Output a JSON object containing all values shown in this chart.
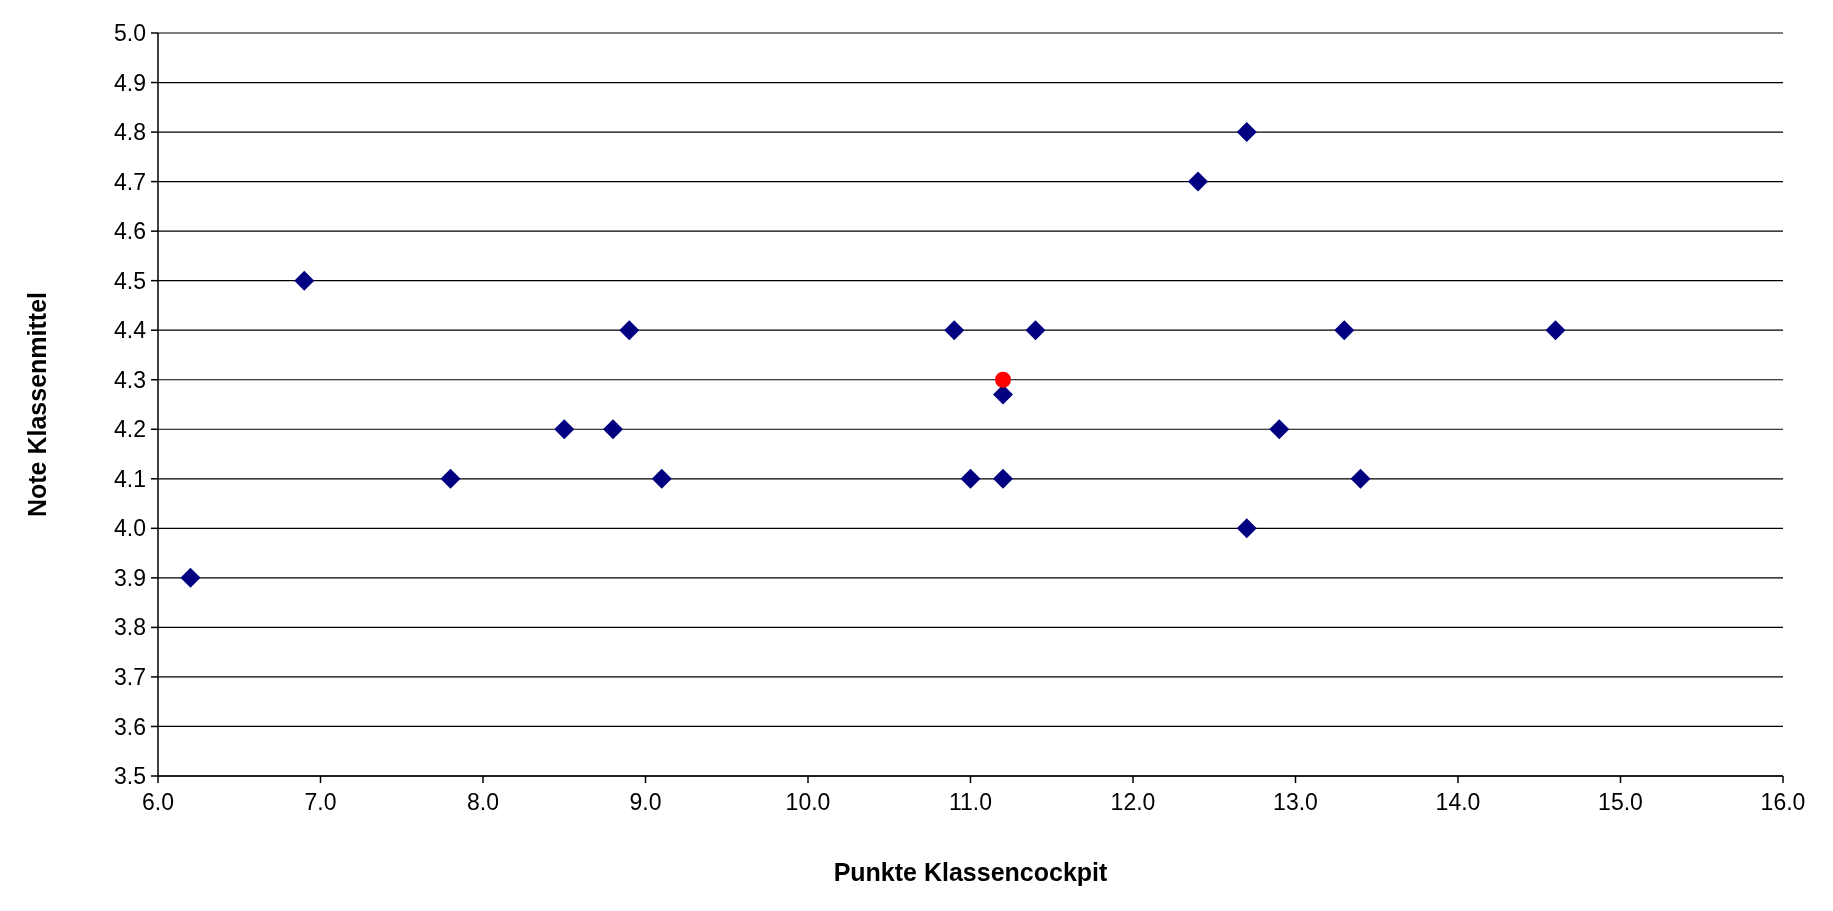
{
  "chart_data": {
    "type": "scatter",
    "xlabel": "Punkte Klassencockpit",
    "ylabel": "Note Klassenmittel",
    "xlim": [
      6.0,
      16.0
    ],
    "xticks": [
      {
        "value": 6,
        "label": "6.0"
      },
      {
        "value": 7,
        "label": "7.0"
      },
      {
        "value": 8,
        "label": "8.0"
      },
      {
        "value": 9,
        "label": "9.0"
      },
      {
        "value": 10,
        "label": "10.0"
      },
      {
        "value": 11,
        "label": "11.0"
      },
      {
        "value": 12,
        "label": "12.0"
      },
      {
        "value": 13,
        "label": "13.0"
      },
      {
        "value": 14,
        "label": "14.0"
      },
      {
        "value": 15,
        "label": "15.0"
      },
      {
        "value": 16,
        "label": "16.0"
      }
    ],
    "ylim": [
      3.5,
      5.0
    ],
    "yticks": [
      {
        "value": 3.5,
        "label": "3.5"
      },
      {
        "value": 3.6,
        "label": "3.6"
      },
      {
        "value": 3.7,
        "label": "3.7"
      },
      {
        "value": 3.8,
        "label": "3.8"
      },
      {
        "value": 3.9,
        "label": "3.9"
      },
      {
        "value": 4.0,
        "label": "4.0"
      },
      {
        "value": 4.1,
        "label": "4.1"
      },
      {
        "value": 4.2,
        "label": "4.2"
      },
      {
        "value": 4.3,
        "label": "4.3"
      },
      {
        "value": 4.4,
        "label": "4.4"
      },
      {
        "value": 4.5,
        "label": "4.5"
      },
      {
        "value": 4.6,
        "label": "4.6"
      },
      {
        "value": 4.7,
        "label": "4.7"
      },
      {
        "value": 4.8,
        "label": "4.8"
      },
      {
        "value": 4.9,
        "label": "4.9"
      },
      {
        "value": 5.0,
        "label": "5.0"
      }
    ],
    "grid": "y",
    "series": [
      {
        "color": "#000080",
        "marker": "diamond",
        "x": [
          6.2,
          6.9,
          7.8,
          8.5,
          8.8,
          8.9,
          9.1,
          10.9,
          11.0,
          11.2,
          11.2,
          11.4,
          12.4,
          12.7,
          12.7,
          12.9,
          13.3,
          13.4,
          14.6
        ],
        "values": [
          3.9,
          4.5,
          4.1,
          4.2,
          4.2,
          4.4,
          4.1,
          4.4,
          4.1,
          4.1,
          4.27,
          4.4,
          4.7,
          4.8,
          4.0,
          4.2,
          4.4,
          4.1,
          4.4
        ]
      },
      {
        "color": "#ff0000",
        "marker": "circle",
        "x": [
          11.2
        ],
        "values": [
          4.3
        ]
      }
    ]
  }
}
